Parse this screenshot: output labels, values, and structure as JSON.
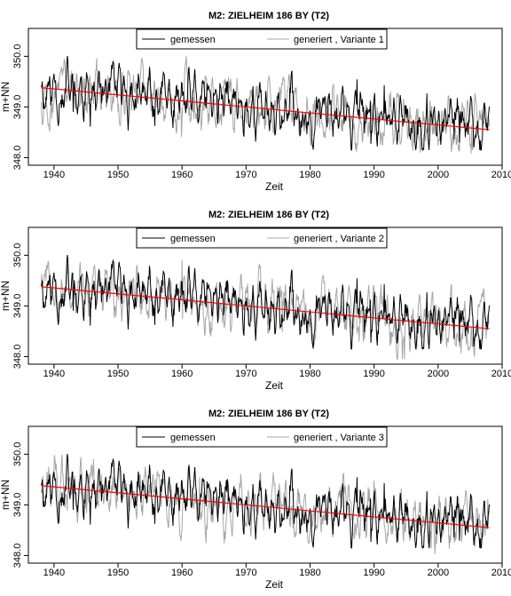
{
  "chart_data": [
    {
      "type": "line",
      "title": "M2: ZIELHEIM 186 BY (T2)",
      "xlabel": "Zeit",
      "ylabel": "m+NN",
      "xlim": [
        1936,
        2010
      ],
      "ylim": [
        347.85,
        350.55
      ],
      "xticks": [
        1940,
        1950,
        1960,
        1970,
        1980,
        1990,
        2000,
        2010
      ],
      "yticks": [
        348.0,
        349.0,
        350.0
      ],
      "ytick_labels": [
        "348.0",
        "349.0",
        "350.0"
      ],
      "grid": false,
      "legend_position": "top",
      "series": [
        {
          "name": "gemessen",
          "color": "#000000",
          "x_range": [
            1938,
            2008
          ],
          "start": 349.35,
          "end": 348.6,
          "amplitude": 0.9,
          "seed": 11,
          "minmax": [
            348.15,
            350.1
          ]
        },
        {
          "name": "generiert , Variante 1",
          "color": "#a6a6a6",
          "x_range": [
            1938,
            2008
          ],
          "start": 349.35,
          "end": 348.6,
          "amplitude": 1.0,
          "seed": 37,
          "minmax": [
            347.95,
            350.05
          ]
        }
      ],
      "trend": {
        "color": "#ff0000",
        "x": [
          1938,
          2008
        ],
        "y": [
          349.38,
          348.55
        ]
      }
    },
    {
      "type": "line",
      "title": "M2: ZIELHEIM 186 BY (T2)",
      "xlabel": "Zeit",
      "ylabel": "m+NN",
      "xlim": [
        1936,
        2010
      ],
      "ylim": [
        347.85,
        350.55
      ],
      "xticks": [
        1940,
        1950,
        1960,
        1970,
        1980,
        1990,
        2000,
        2010
      ],
      "yticks": [
        348.0,
        349.0,
        350.0
      ],
      "ytick_labels": [
        "348.0",
        "349.0",
        "350.0"
      ],
      "grid": false,
      "legend_position": "top",
      "series": [
        {
          "name": "gemessen",
          "color": "#000000",
          "x_range": [
            1938,
            2008
          ],
          "start": 349.35,
          "end": 348.6,
          "amplitude": 0.9,
          "seed": 11,
          "minmax": [
            348.15,
            350.1
          ]
        },
        {
          "name": "generiert , Variante 2",
          "color": "#a6a6a6",
          "x_range": [
            1938,
            2008
          ],
          "start": 349.35,
          "end": 348.6,
          "amplitude": 1.0,
          "seed": 73,
          "minmax": [
            347.95,
            350.2
          ]
        }
      ],
      "trend": {
        "color": "#ff0000",
        "x": [
          1938,
          2008
        ],
        "y": [
          349.38,
          348.55
        ]
      }
    },
    {
      "type": "line",
      "title": "M2: ZIELHEIM 186 BY (T2)",
      "xlabel": "Zeit",
      "ylabel": "m+NN",
      "xlim": [
        1936,
        2010
      ],
      "ylim": [
        347.85,
        350.55
      ],
      "xticks": [
        1940,
        1950,
        1960,
        1970,
        1980,
        1990,
        2000,
        2010
      ],
      "yticks": [
        348.0,
        349.0,
        350.0
      ],
      "ytick_labels": [
        "348.0",
        "349.0",
        "350.0"
      ],
      "grid": false,
      "legend_position": "top",
      "series": [
        {
          "name": "gemessen",
          "color": "#000000",
          "x_range": [
            1938,
            2008
          ],
          "start": 349.35,
          "end": 348.6,
          "amplitude": 0.9,
          "seed": 11,
          "minmax": [
            348.15,
            350.1
          ]
        },
        {
          "name": "generiert , Variante 3",
          "color": "#a6a6a6",
          "x_range": [
            1938,
            2008
          ],
          "start": 349.35,
          "end": 348.6,
          "amplitude": 1.0,
          "seed": 129,
          "minmax": [
            347.95,
            350.15
          ]
        }
      ],
      "trend": {
        "color": "#ff0000",
        "x": [
          1938,
          2008
        ],
        "y": [
          349.38,
          348.55
        ]
      }
    }
  ]
}
